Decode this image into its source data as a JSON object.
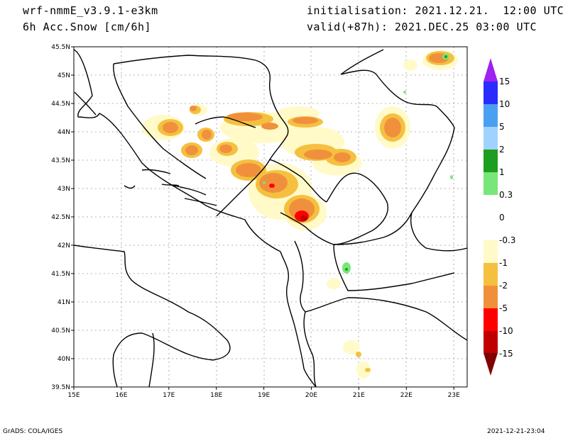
{
  "header": {
    "model": "wrf-nmmE_v3.9.1-e3km",
    "field": "6h Acc.Snow [cm/6h]",
    "init": "initialisation: 2021.12.21.  12:00 UTC",
    "valid": "valid(+87h): 2021.DEC.25 03:00 UTC"
  },
  "footer": {
    "credit": "GrADS: COLA/IGES",
    "timestamp": "2021-12-21-23:04"
  },
  "map": {
    "lon_labels": [
      "15E",
      "16E",
      "17E",
      "18E",
      "19E",
      "20E",
      "21E",
      "22E",
      "23E"
    ],
    "lat_labels": [
      "45.5N",
      "45N",
      "44.5N",
      "44N",
      "43.5N",
      "43N",
      "42.5N",
      "42N",
      "41.5N",
      "41N",
      "40.5N",
      "40N",
      "39.5N"
    ],
    "lon_range": [
      15,
      23.3
    ],
    "lat_range": [
      39.5,
      45.5
    ]
  },
  "colorbar": {
    "labels": [
      "15",
      "10",
      "5",
      "2",
      "1",
      "0.3",
      "0",
      "-0.3",
      "-1",
      "-2",
      "-5",
      "-10",
      "-15"
    ],
    "colors": {
      "top_arrow": "#a020f0",
      "15_10": "#2b2bff",
      "10_5": "#4aa0f0",
      "5_2": "#a0d2ff",
      "2_1": "#1e9e1e",
      "1_0.3": "#78e678",
      "0.3_0": "#ffffff",
      "0_-0.3": "#ffffff",
      "-0.3_-1": "#fffac8",
      "-1_-2": "#f5c040",
      "-2_-5": "#f0903c",
      "-5_-10": "#ff0000",
      "-10_-15": "#c00000",
      "bottom_arrow": "#800000"
    }
  }
}
